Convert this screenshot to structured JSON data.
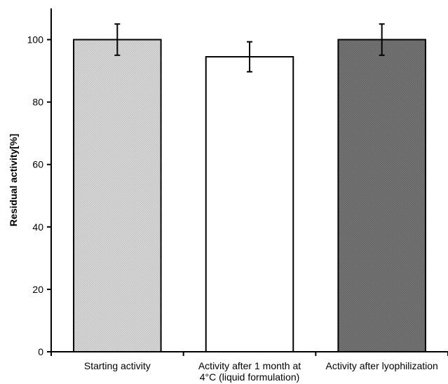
{
  "chart_data": {
    "type": "bar",
    "title": "",
    "xlabel": "",
    "ylabel": "Residual activity[%]",
    "ylim": [
      0,
      110
    ],
    "yticks": [
      0,
      20,
      40,
      60,
      80,
      100
    ],
    "grid": false,
    "legend": "none",
    "categories": [
      [
        "Starting activity"
      ],
      [
        "Activity after 1 month at",
        "4°C (liquid formulation)"
      ],
      [
        "Activity after lyophilization"
      ]
    ],
    "values": [
      100,
      94.5,
      100
    ],
    "errors": [
      5,
      4.8,
      5
    ],
    "colors": [
      "#d3d3d3",
      "#ffffff",
      "#707070"
    ],
    "edge_color": "#000000"
  }
}
